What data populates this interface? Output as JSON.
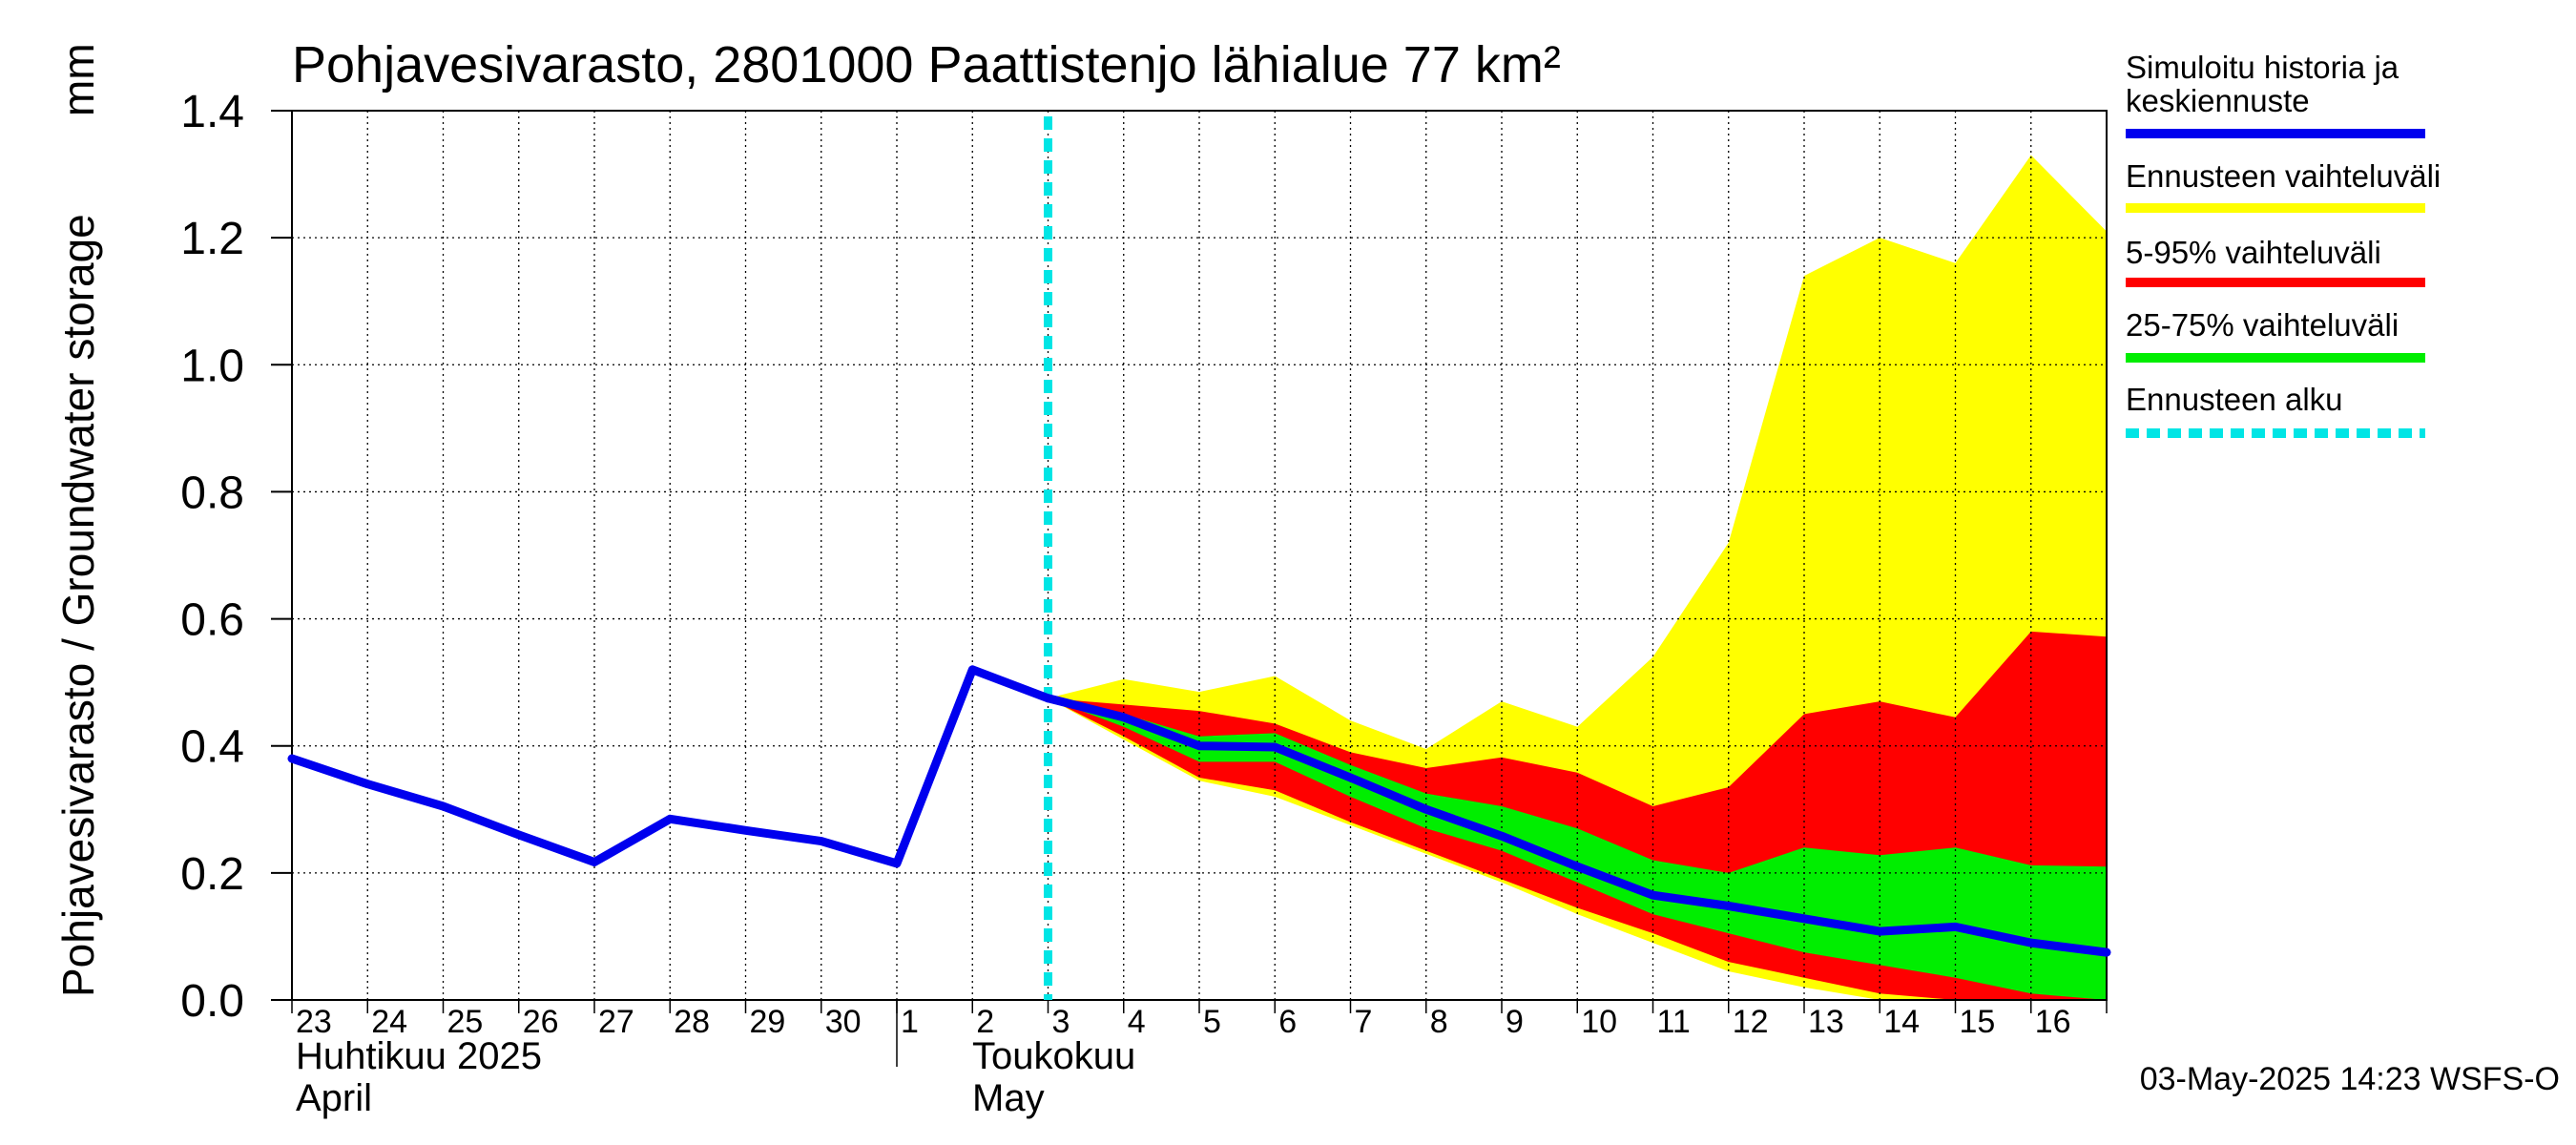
{
  "chart_data": {
    "type": "area",
    "title": "Pohjavesivarasto, 2801000 Paattistenjo lähialue 77 km²",
    "ylabel": "Pohjavesivarasto / Groundwater storage",
    "yunit": "mm",
    "ylim": [
      0,
      1.4
    ],
    "yticks": [
      "0.0",
      "0.2",
      "0.4",
      "0.6",
      "0.8",
      "1.0",
      "1.2",
      "1.4"
    ],
    "xlim": [
      "2025-04-23",
      "2025-05-17"
    ],
    "day_labels": [
      "23",
      "24",
      "25",
      "26",
      "27",
      "28",
      "29",
      "30",
      "1",
      "2",
      "3",
      "4",
      "5",
      "6",
      "7",
      "8",
      "9",
      "10",
      "11",
      "12",
      "13",
      "14",
      "15",
      "16"
    ],
    "month_labels": [
      {
        "fi": "Huhtikuu  2025",
        "en": "April"
      },
      {
        "fi": "Toukokuu",
        "en": "May"
      }
    ],
    "grid": true,
    "legend_position": "right",
    "forecast_start": "2025-05-03",
    "history": {
      "name": "Simuloitu historia ja keskiennuste",
      "color": "#0000ee",
      "x": [
        "2025-04-23",
        "2025-04-24",
        "2025-04-25",
        "2025-04-26",
        "2025-04-27",
        "2025-04-28",
        "2025-04-29",
        "2025-04-30",
        "2025-05-01",
        "2025-05-02",
        "2025-05-03"
      ],
      "y": [
        0.38,
        0.34,
        0.305,
        0.26,
        0.217,
        0.285,
        0.267,
        0.25,
        0.215,
        0.52,
        0.475
      ]
    },
    "forecast_x": [
      "2025-05-03",
      "2025-05-04",
      "2025-05-05",
      "2025-05-06",
      "2025-05-07",
      "2025-05-08",
      "2025-05-09",
      "2025-05-10",
      "2025-05-11",
      "2025-05-12",
      "2025-05-13",
      "2025-05-14",
      "2025-05-15",
      "2025-05-16",
      "2025-05-17"
    ],
    "median": [
      0.475,
      0.445,
      0.4,
      0.398,
      0.35,
      0.3,
      0.258,
      0.21,
      0.165,
      0.148,
      0.128,
      0.108,
      0.115,
      0.09,
      0.075
    ],
    "bands": [
      {
        "name": "Ennusteen vaihteluväli",
        "color": "#ffff00",
        "lower": [
          0.475,
          0.41,
          0.345,
          0.32,
          0.275,
          0.23,
          0.185,
          0.135,
          0.09,
          0.045,
          0.02,
          0.0,
          0.0,
          0.0,
          0.0
        ],
        "upper": [
          0.475,
          0.505,
          0.485,
          0.51,
          0.44,
          0.395,
          0.47,
          0.43,
          0.54,
          0.72,
          1.14,
          1.2,
          1.16,
          1.33,
          1.21
        ]
      },
      {
        "name": "5-95% vaihteluväli",
        "color": "#ff0000",
        "lower": [
          0.475,
          0.415,
          0.35,
          0.33,
          0.28,
          0.235,
          0.19,
          0.145,
          0.105,
          0.06,
          0.035,
          0.01,
          0.0,
          0.0,
          0.0
        ],
        "upper": [
          0.475,
          0.465,
          0.455,
          0.435,
          0.39,
          0.365,
          0.382,
          0.358,
          0.305,
          0.335,
          0.45,
          0.47,
          0.445,
          0.58,
          0.572
        ]
      },
      {
        "name": "25-75% vaihteluväli",
        "color": "#00ee00",
        "lower": [
          0.475,
          0.43,
          0.375,
          0.375,
          0.32,
          0.27,
          0.235,
          0.185,
          0.135,
          0.105,
          0.075,
          0.055,
          0.035,
          0.01,
          0.0
        ],
        "upper": [
          0.475,
          0.45,
          0.415,
          0.42,
          0.37,
          0.325,
          0.305,
          0.27,
          0.22,
          0.2,
          0.24,
          0.228,
          0.24,
          0.212,
          0.21
        ]
      }
    ],
    "legend": [
      {
        "label": "Simuloitu historia ja keskiennuste",
        "color": "#0000ee",
        "style": "solid"
      },
      {
        "label": "Ennusteen vaihteluväli",
        "color": "#ffff00",
        "style": "solid"
      },
      {
        "label": "5-95% vaihteluväli",
        "color": "#ff0000",
        "style": "solid"
      },
      {
        "label": "25-75% vaihteluväli",
        "color": "#00ee00",
        "style": "solid"
      },
      {
        "label": "Ennusteen alku",
        "color": "#00e5e5",
        "style": "dashed"
      }
    ],
    "footer": "03-May-2025 14:23 WSFS-O"
  }
}
